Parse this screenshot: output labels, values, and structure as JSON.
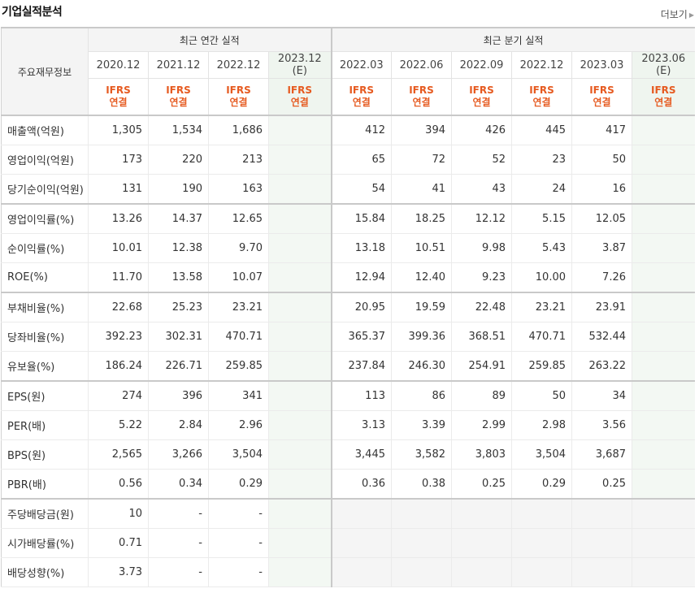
{
  "header": {
    "title": "기업실적분석",
    "more_label": "더보기"
  },
  "table": {
    "first_header": "주요재무정보",
    "groups": [
      {
        "label": "최근 연간 실적"
      },
      {
        "label": "최근 분기 실적"
      }
    ],
    "annual_columns": [
      {
        "period": "2020.12",
        "est": "",
        "std": "IFRS",
        "basis": "연결"
      },
      {
        "period": "2021.12",
        "est": "",
        "std": "IFRS",
        "basis": "연결"
      },
      {
        "period": "2022.12",
        "est": "",
        "std": "IFRS",
        "basis": "연결"
      },
      {
        "period": "2023.12",
        "est": "(E)",
        "std": "IFRS",
        "basis": "연결"
      }
    ],
    "quarter_columns": [
      {
        "period": "2022.03",
        "est": "",
        "std": "IFRS",
        "basis": "연결"
      },
      {
        "period": "2022.06",
        "est": "",
        "std": "IFRS",
        "basis": "연결"
      },
      {
        "period": "2022.09",
        "est": "",
        "std": "IFRS",
        "basis": "연결"
      },
      {
        "period": "2022.12",
        "est": "",
        "std": "IFRS",
        "basis": "연결"
      },
      {
        "period": "2023.03",
        "est": "",
        "std": "IFRS",
        "basis": "연결"
      },
      {
        "period": "2023.06",
        "est": "(E)",
        "std": "IFRS",
        "basis": "연결"
      }
    ],
    "rows": [
      {
        "label": "매출액(억원)",
        "annual": [
          "1,305",
          "1,534",
          "1,686",
          ""
        ],
        "quarter": [
          "412",
          "394",
          "426",
          "445",
          "417",
          ""
        ]
      },
      {
        "label": "영업이익(억원)",
        "annual": [
          "173",
          "220",
          "213",
          ""
        ],
        "quarter": [
          "65",
          "72",
          "52",
          "23",
          "50",
          ""
        ]
      },
      {
        "label": "당기순이익(억원)",
        "annual": [
          "131",
          "190",
          "163",
          ""
        ],
        "quarter": [
          "54",
          "41",
          "43",
          "24",
          "16",
          ""
        ]
      },
      {
        "label": "영업이익률(%)",
        "annual": [
          "13.26",
          "14.37",
          "12.65",
          ""
        ],
        "quarter": [
          "15.84",
          "18.25",
          "12.12",
          "5.15",
          "12.05",
          ""
        ]
      },
      {
        "label": "순이익률(%)",
        "annual": [
          "10.01",
          "12.38",
          "9.70",
          ""
        ],
        "quarter": [
          "13.18",
          "10.51",
          "9.98",
          "5.43",
          "3.87",
          ""
        ]
      },
      {
        "label": "ROE(%)",
        "annual": [
          "11.70",
          "13.58",
          "10.07",
          ""
        ],
        "quarter": [
          "12.94",
          "12.40",
          "9.23",
          "10.00",
          "7.26",
          ""
        ]
      },
      {
        "label": "부채비율(%)",
        "annual": [
          "22.68",
          "25.23",
          "23.21",
          ""
        ],
        "quarter": [
          "20.95",
          "19.59",
          "22.48",
          "23.21",
          "23.91",
          ""
        ]
      },
      {
        "label": "당좌비율(%)",
        "annual": [
          "392.23",
          "302.31",
          "470.71",
          ""
        ],
        "quarter": [
          "365.37",
          "399.36",
          "368.51",
          "470.71",
          "532.44",
          ""
        ]
      },
      {
        "label": "유보율(%)",
        "annual": [
          "186.24",
          "226.71",
          "259.85",
          ""
        ],
        "quarter": [
          "237.84",
          "246.30",
          "254.91",
          "259.85",
          "263.22",
          ""
        ]
      },
      {
        "label": "EPS(원)",
        "annual": [
          "274",
          "396",
          "341",
          ""
        ],
        "quarter": [
          "113",
          "86",
          "89",
          "50",
          "34",
          ""
        ]
      },
      {
        "label": "PER(배)",
        "annual": [
          "5.22",
          "2.84",
          "2.96",
          ""
        ],
        "quarter": [
          "3.13",
          "3.39",
          "2.99",
          "2.98",
          "3.56",
          ""
        ]
      },
      {
        "label": "BPS(원)",
        "annual": [
          "2,565",
          "3,266",
          "3,504",
          ""
        ],
        "quarter": [
          "3,445",
          "3,582",
          "3,803",
          "3,504",
          "3,687",
          ""
        ]
      },
      {
        "label": "PBR(배)",
        "annual": [
          "0.56",
          "0.34",
          "0.29",
          ""
        ],
        "quarter": [
          "0.36",
          "0.38",
          "0.25",
          "0.29",
          "0.25",
          ""
        ]
      },
      {
        "label": "주당배당금(원)",
        "annual": [
          "10",
          "-",
          "-",
          ""
        ],
        "quarter": [
          "",
          "",
          "",
          "",
          "",
          ""
        ]
      },
      {
        "label": "시가배당률(%)",
        "annual": [
          "0.71",
          "-",
          "-",
          ""
        ],
        "quarter": [
          "",
          "",
          "",
          "",
          "",
          ""
        ]
      },
      {
        "label": "배당성향(%)",
        "annual": [
          "3.73",
          "-",
          "-",
          ""
        ],
        "quarter": [
          "",
          "",
          "",
          "",
          "",
          ""
        ]
      }
    ]
  }
}
